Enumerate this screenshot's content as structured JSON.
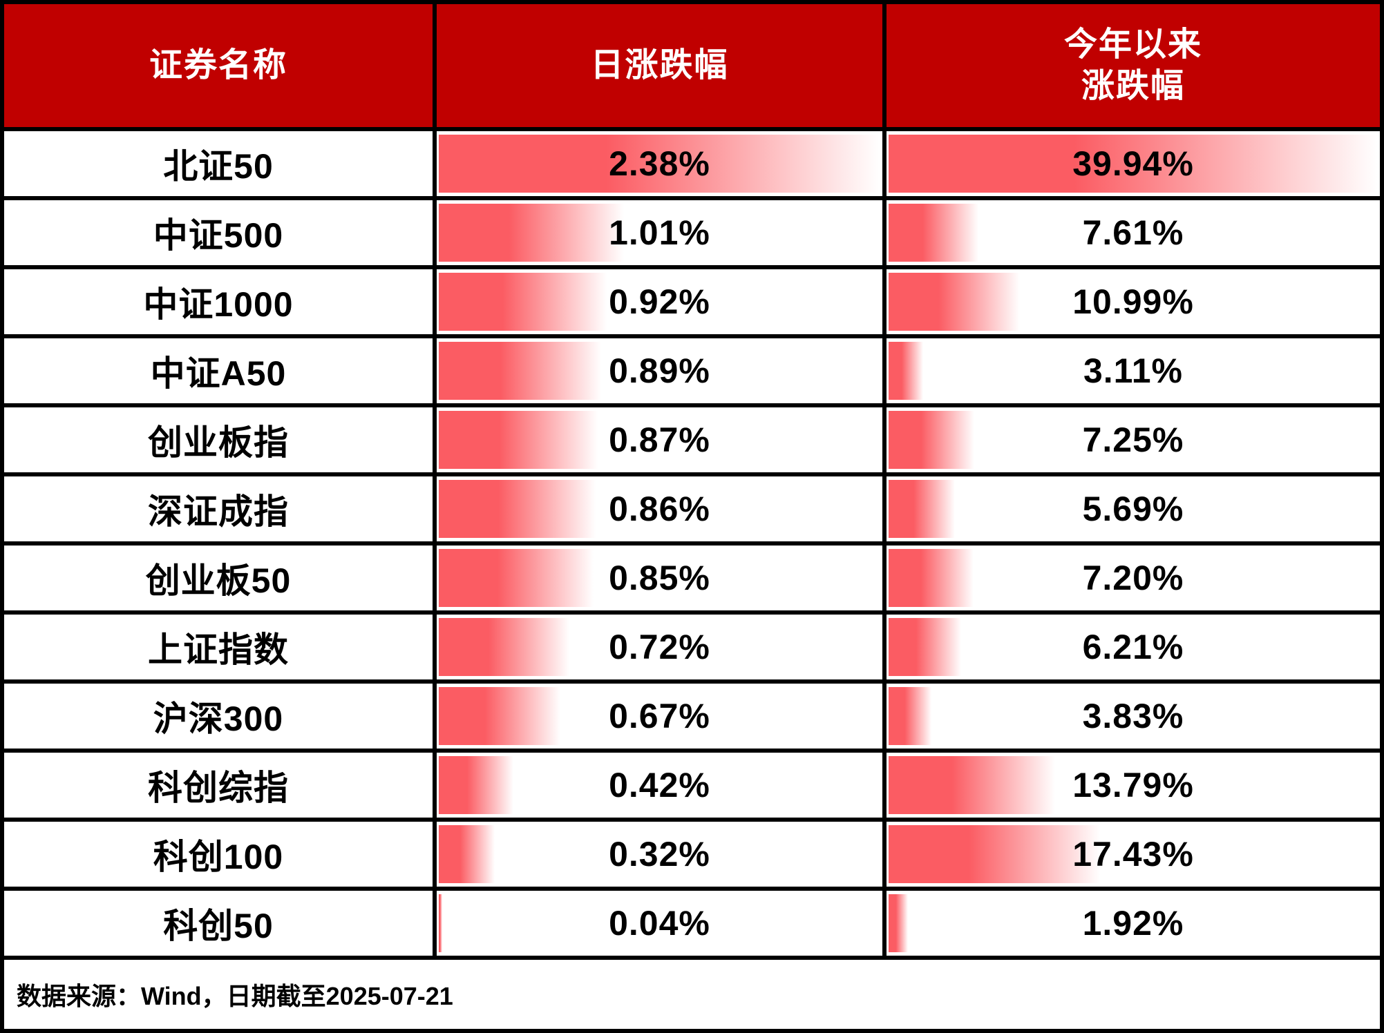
{
  "header": {
    "name_col": "证券名称",
    "daily_col": "日涨跌幅",
    "ytd_col_line1": "今年以来",
    "ytd_col_line2": "涨跌幅"
  },
  "rows": [
    {
      "name": "北证50",
      "daily_label": "2.38%",
      "ytd_label": "39.94%",
      "daily": 2.38,
      "ytd": 39.94
    },
    {
      "name": "中证500",
      "daily_label": "1.01%",
      "ytd_label": "7.61%",
      "daily": 1.01,
      "ytd": 7.61
    },
    {
      "name": "中证1000",
      "daily_label": "0.92%",
      "ytd_label": "10.99%",
      "daily": 0.92,
      "ytd": 10.99
    },
    {
      "name": "中证A50",
      "daily_label": "0.89%",
      "ytd_label": "3.11%",
      "daily": 0.89,
      "ytd": 3.11
    },
    {
      "name": "创业板指",
      "daily_label": "0.87%",
      "ytd_label": "7.25%",
      "daily": 0.87,
      "ytd": 7.25
    },
    {
      "name": "深证成指",
      "daily_label": "0.86%",
      "ytd_label": "5.69%",
      "daily": 0.86,
      "ytd": 5.69
    },
    {
      "name": "创业板50",
      "daily_label": "0.85%",
      "ytd_label": "7.20%",
      "daily": 0.85,
      "ytd": 7.2
    },
    {
      "name": "上证指数",
      "daily_label": "0.72%",
      "ytd_label": "6.21%",
      "daily": 0.72,
      "ytd": 6.21
    },
    {
      "name": "沪深300",
      "daily_label": "0.67%",
      "ytd_label": "3.83%",
      "daily": 0.67,
      "ytd": 3.83
    },
    {
      "name": "科创综指",
      "daily_label": "0.42%",
      "ytd_label": "13.79%",
      "daily": 0.42,
      "ytd": 13.79
    },
    {
      "name": "科创100",
      "daily_label": "0.32%",
      "ytd_label": "17.43%",
      "daily": 0.32,
      "ytd": 17.43
    },
    {
      "name": "科创50",
      "daily_label": "0.04%",
      "ytd_label": "1.92%",
      "daily": 0.04,
      "ytd": 1.92
    }
  ],
  "footer": {
    "source_note": "数据来源：Wind，日期截至2025-07-21"
  },
  "colors": {
    "header_bg": "#c00000",
    "header_text": "#ffffff",
    "bar_red": "#fb5c63",
    "border": "#000000",
    "cell_bg": "#ffffff",
    "text": "#000000"
  },
  "chart_data": {
    "type": "table",
    "title": "",
    "categories": [
      "北证50",
      "中证500",
      "中证1000",
      "中证A50",
      "创业板指",
      "深证成指",
      "创业板50",
      "上证指数",
      "沪深300",
      "科创综指",
      "科创100",
      "科创50"
    ],
    "series": [
      {
        "name": "日涨跌幅",
        "unit": "%",
        "values": [
          2.38,
          1.01,
          0.92,
          0.89,
          0.87,
          0.86,
          0.85,
          0.72,
          0.67,
          0.42,
          0.32,
          0.04
        ]
      },
      {
        "name": "今年以来涨跌幅",
        "unit": "%",
        "values": [
          39.94,
          7.61,
          10.99,
          3.11,
          7.25,
          5.69,
          7.2,
          6.21,
          3.83,
          13.79,
          17.43,
          1.92
        ]
      }
    ],
    "layout": {
      "bars": "in-cell gradient data bars, length proportional to value vs column max",
      "daily_bar_max": 2.38,
      "ytd_bar_max": 39.94,
      "grid": "black gridlines"
    },
    "note": "数据来源：Wind，日期截至2025-07-21"
  }
}
